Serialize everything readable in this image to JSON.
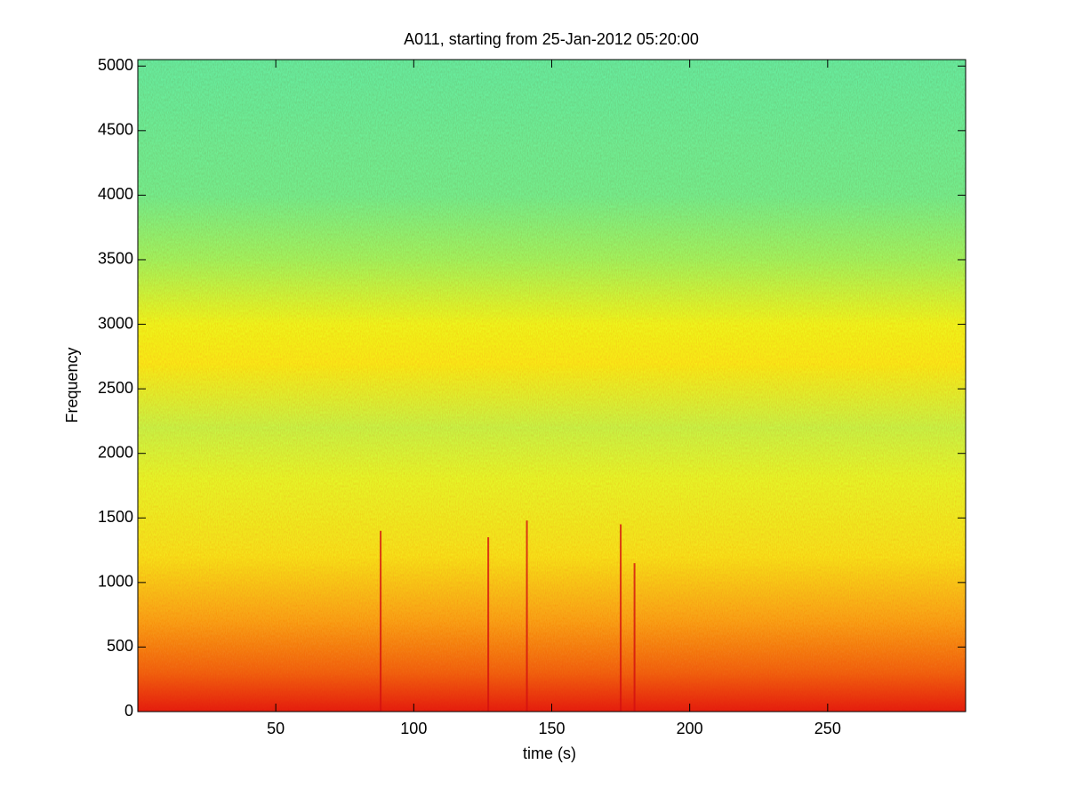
{
  "chart_data": {
    "type": "spectrogram",
    "title": "A011, starting from 25-Jan-2012 05:20:00",
    "x_label": "time (s)",
    "y_label": "Frequency",
    "xlim": [
      0,
      300
    ],
    "ylim": [
      0,
      5050
    ],
    "xticks": [
      50,
      100,
      150,
      200,
      250
    ],
    "yticks": [
      0,
      500,
      1000,
      1500,
      2000,
      2500,
      3000,
      3500,
      4000,
      4500,
      5000
    ],
    "color_stops": [
      {
        "frequency": 0,
        "color": "#e41e0c"
      },
      {
        "frequency": 300,
        "color": "#f06412"
      },
      {
        "frequency": 700,
        "color": "#f8a414"
      },
      {
        "frequency": 1200,
        "color": "#f6e41a"
      },
      {
        "frequency": 1800,
        "color": "#e6f828"
      },
      {
        "frequency": 2200,
        "color": "#c8f646"
      },
      {
        "frequency": 2700,
        "color": "#f8ec16"
      },
      {
        "frequency": 3000,
        "color": "#eef81c"
      },
      {
        "frequency": 3500,
        "color": "#a2f65e"
      },
      {
        "frequency": 4000,
        "color": "#74f08e"
      },
      {
        "frequency": 5050,
        "color": "#66eea0"
      }
    ],
    "spikes": {
      "color": "#d41010",
      "times": [
        88,
        127,
        141,
        175,
        180
      ],
      "top_frequencies": [
        1400,
        1350,
        1480,
        1450,
        1150
      ]
    }
  }
}
